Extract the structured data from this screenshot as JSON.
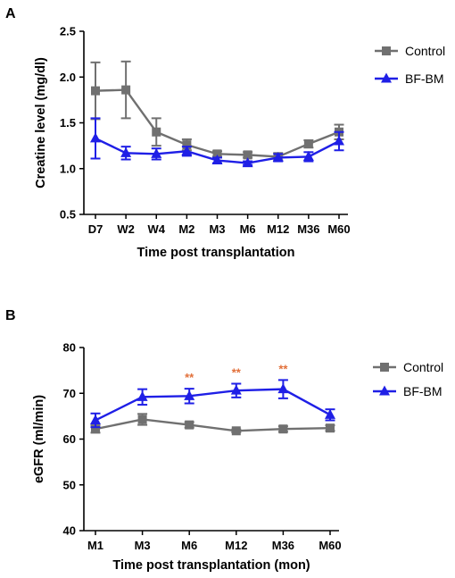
{
  "chart_data": [
    {
      "panel": "A",
      "type": "line",
      "xlabel": "Time post transplantation",
      "ylabel": "Creatine level (mg/dl)",
      "categories": [
        "D7",
        "W2",
        "W4",
        "M2",
        "M3",
        "M6",
        "M12",
        "M36",
        "M60"
      ],
      "ylim": [
        0.5,
        2.5
      ],
      "yticks": [
        0.5,
        1.0,
        1.5,
        2.0,
        2.5
      ],
      "y_tick_labels": [
        "0.5",
        "1.0",
        "1.5",
        "2.0",
        "2.5"
      ],
      "legend_position": "right",
      "series": [
        {
          "name": "Control",
          "color": "#707070",
          "marker": "square",
          "values": [
            1.85,
            1.86,
            1.4,
            1.26,
            1.16,
            1.15,
            1.13,
            1.27,
            1.4
          ],
          "errors": [
            0.31,
            0.31,
            0.15,
            0.06,
            0.03,
            0.03,
            0.04,
            0.04,
            0.08
          ]
        },
        {
          "name": "BF-BM",
          "color": "#1f1fe6",
          "marker": "triangle",
          "values": [
            1.33,
            1.17,
            1.16,
            1.19,
            1.09,
            1.06,
            1.12,
            1.13,
            1.3
          ],
          "errors": [
            0.22,
            0.07,
            0.06,
            0.05,
            0.03,
            0.02,
            0.04,
            0.05,
            0.1
          ]
        }
      ]
    },
    {
      "panel": "B",
      "type": "line",
      "xlabel": "Time post transplantation (mon)",
      "ylabel": "eGFR (ml/min)",
      "categories": [
        "M1",
        "M3",
        "M6",
        "M12",
        "M36",
        "M60"
      ],
      "ylim": [
        40,
        80
      ],
      "yticks": [
        40,
        50,
        60,
        70,
        80
      ],
      "y_tick_labels": [
        "40",
        "50",
        "60",
        "70",
        "80"
      ],
      "legend_position": "right",
      "annotations": [
        {
          "category": "M6",
          "text": "**"
        },
        {
          "category": "M12",
          "text": "**"
        },
        {
          "category": "M36",
          "text": "**"
        }
      ],
      "series": [
        {
          "name": "Control",
          "color": "#707070",
          "marker": "square",
          "values": [
            62.2,
            64.3,
            63.1,
            61.8,
            62.2,
            62.4
          ],
          "errors": [
            0.8,
            1.2,
            0.6,
            0.3,
            0.6,
            0.6
          ]
        },
        {
          "name": "BF-BM",
          "color": "#1f1fe6",
          "marker": "triangle",
          "values": [
            64.1,
            69.2,
            69.4,
            70.6,
            70.9,
            65.3
          ],
          "errors": [
            1.5,
            1.7,
            1.6,
            1.5,
            2.0,
            1.2
          ]
        }
      ]
    }
  ]
}
